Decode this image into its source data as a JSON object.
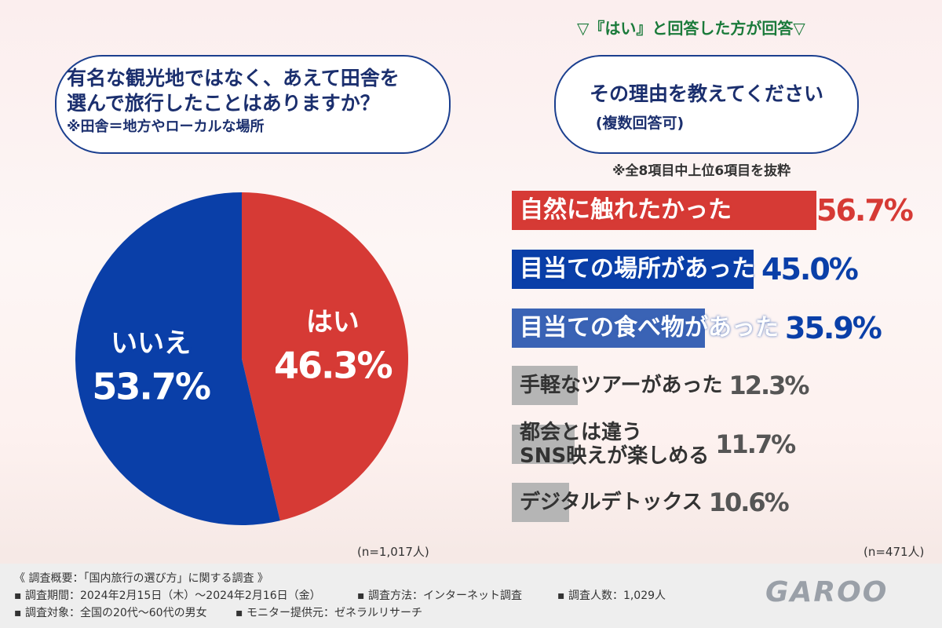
{
  "chart_data": [
    {
      "type": "pie",
      "title_lines": [
        "有名な観光地ではなく、あえて田舎を",
        "選んで旅行したことはありますか？"
      ],
      "note": "※田舎＝地方やローカルな場所",
      "categories": [
        "はい",
        "いいえ"
      ],
      "values": [
        46.3,
        53.7
      ],
      "value_labels": [
        "46.3%",
        "53.7%"
      ],
      "colors": [
        "#d63a35",
        "#0a3fa8"
      ],
      "sample": "(n=1,017人)"
    },
    {
      "type": "bar",
      "header": "▽『はい』と回答した方が回答▽",
      "title": "その理由を教えてください",
      "subtitle": "(複数回答可)",
      "note": "※全8項目中上位6項目を抜粋",
      "categories": [
        "自然に触れたかった",
        "目当ての場所があった",
        "目当ての食べ物があった",
        "手軽なツアーがあった",
        "都会とは違う\nSNS映えが楽しめる",
        "デジタルデトックス"
      ],
      "values": [
        56.7,
        45.0,
        35.9,
        12.3,
        11.7,
        10.6
      ],
      "value_labels": [
        "56.7%",
        "45.0%",
        "35.9%",
        "12.3%",
        "11.7%",
        "10.6%"
      ],
      "colors": [
        "#d63a35",
        "#0a3fa8",
        "#3a63b5",
        "#b5b5b5",
        "#b5b5b5",
        "#b5b5b5"
      ],
      "sample": "(n=471人)"
    }
  ],
  "footer": {
    "title": "《 調査概要：「国内旅行の選び方」に関する調査 》",
    "items": [
      "▪ 調査期間：2024年2月15日（木）～2024年2月16日（金）",
      "▪ 調査方法：インターネット調査",
      "▪ 調査人数：1,029人",
      "▪ 調査対象：全国の20代～60代の男女",
      "▪ モニター提供元：ゼネラルリサーチ"
    ],
    "logo": "GAROO"
  }
}
